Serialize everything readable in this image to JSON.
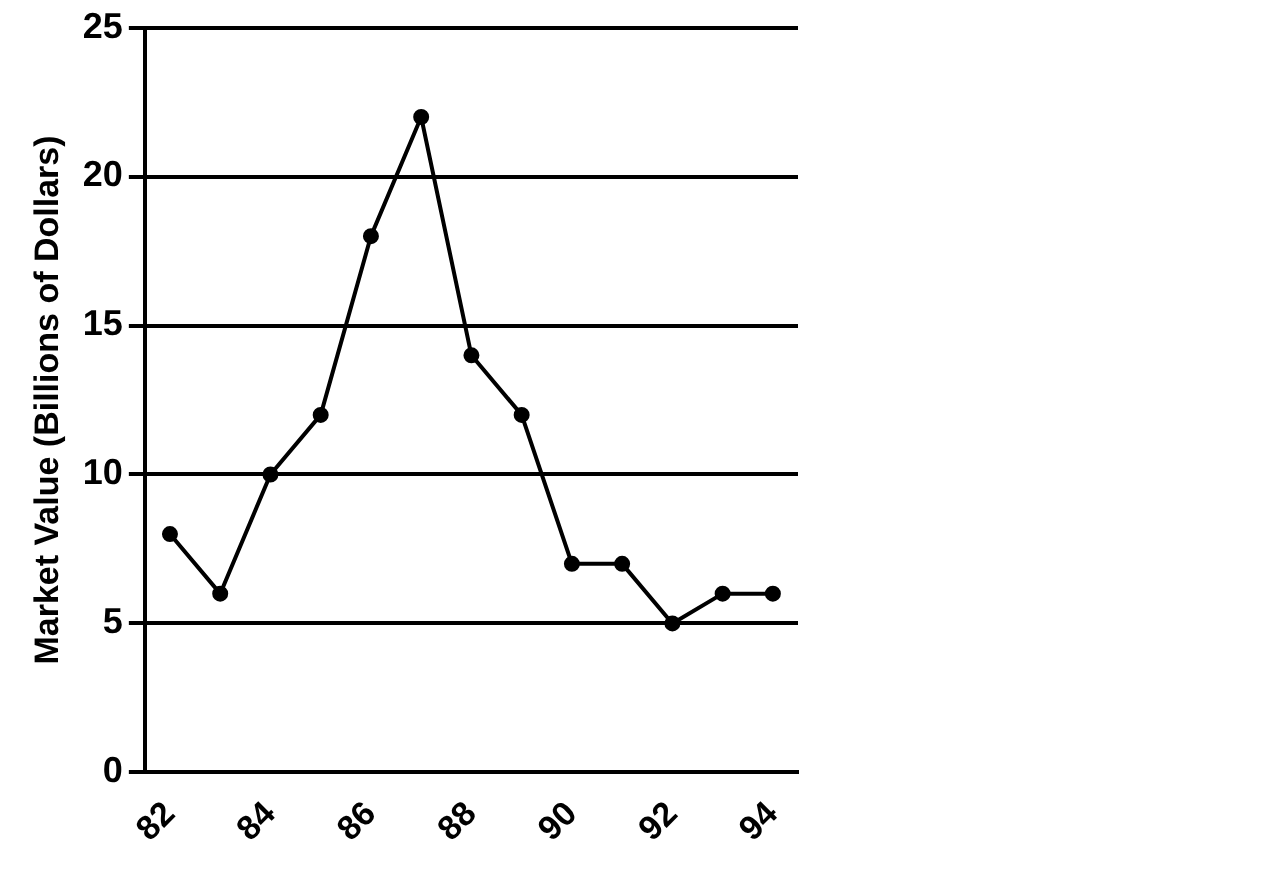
{
  "chart_data": {
    "type": "line",
    "ylabel": "Market Value (Billions of Dollars)",
    "categories": [
      "82",
      null,
      "84",
      null,
      "86",
      null,
      "88",
      null,
      "90",
      null,
      "92",
      null,
      "94"
    ],
    "series": [
      {
        "color": "#000000",
        "values": [
          8,
          6,
          10,
          12,
          18,
          22,
          14,
          12,
          7,
          7,
          5,
          6,
          6
        ]
      }
    ],
    "ylim": [
      0,
      25
    ],
    "yticks": [
      0,
      5,
      10,
      15,
      20,
      25
    ],
    "grid": "y",
    "marker": "circle",
    "line_style": "solid",
    "legend": false
  }
}
